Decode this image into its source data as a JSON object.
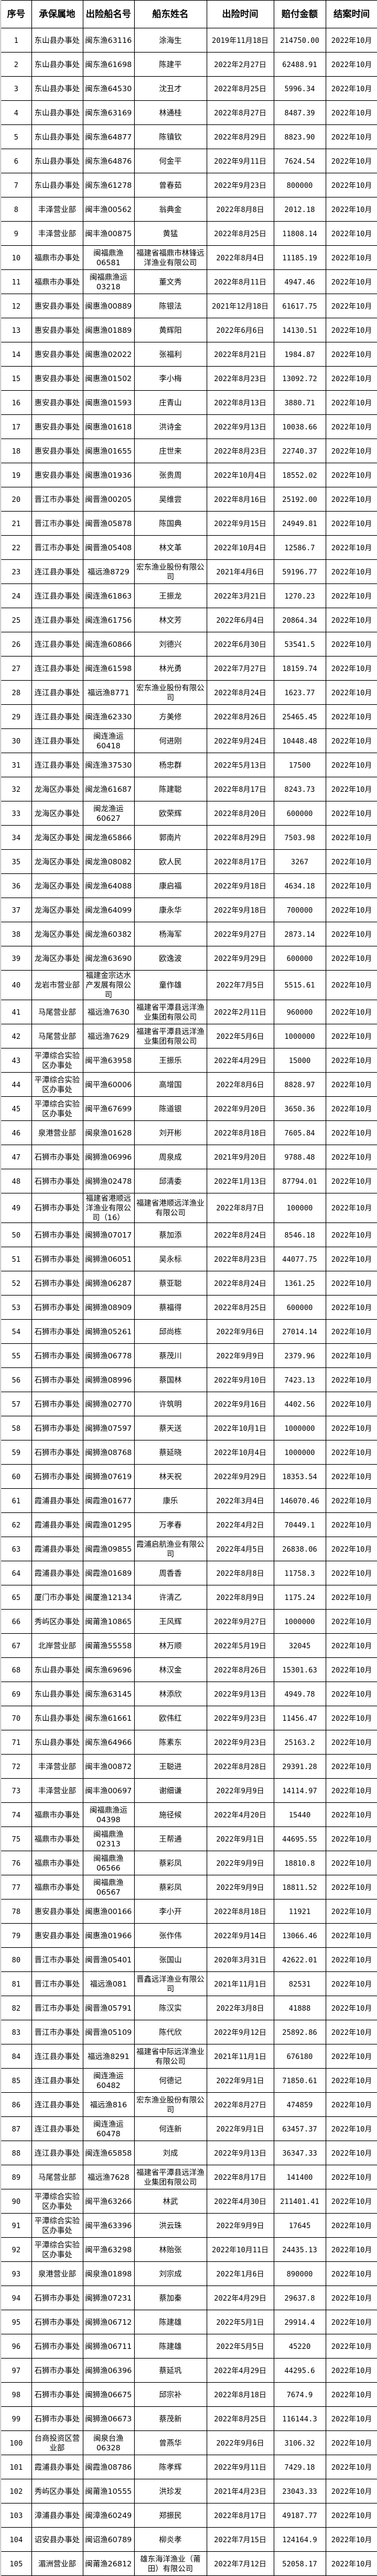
{
  "headers": [
    "序号",
    "承保属地",
    "出险船名号",
    "船东姓名",
    "出险时间",
    "赔付金额",
    "结案时间"
  ],
  "rows": [
    [
      "1",
      "东山县办事处",
      "闽东渔63116",
      "涂海生",
      "2019年11月18日",
      "214750.00",
      "2022年10月"
    ],
    [
      "2",
      "东山县办事处",
      "闽东渔61698",
      "陈建平",
      "2022年2月27日",
      "62488.91",
      "2022年10月"
    ],
    [
      "3",
      "东山县办事处",
      "闽东渔64530",
      "沈丑才",
      "2022年8月25日",
      "5996.34",
      "2022年10月"
    ],
    [
      "4",
      "东山县办事处",
      "闽东渔63169",
      "林通桂",
      "2022年8月27日",
      "8487.39",
      "2022年10月"
    ],
    [
      "5",
      "东山县办事处",
      "闽东渔64877",
      "陈镇钦",
      "2022年8月29日",
      "8823.90",
      "2022年10月"
    ],
    [
      "6",
      "东山县办事处",
      "闽东渔64876",
      "何金平",
      "2022年9月11日",
      "7624.54",
      "2022年10月"
    ],
    [
      "7",
      "东山县办事处",
      "闽东渔61278",
      "曾春茹",
      "2022年9月23日",
      "800000",
      "2022年10月"
    ],
    [
      "8",
      "丰泽营业部",
      "闽丰渔00562",
      "翁典金",
      "2022年8月8日",
      "2012.18",
      "2022年10月"
    ],
    [
      "9",
      "丰泽营业部",
      "闽丰渔00875",
      "黄猛",
      "2022年8月25日",
      "11808.14",
      "2022年10月"
    ],
    [
      "10",
      "福鼎市办事处",
      "闽福鼎渔06581",
      "福建省福鼎市林锋远洋渔业有限公司",
      "2022年8月4日",
      "11185.19",
      "2022年10月"
    ],
    [
      "11",
      "福鼎市办事处",
      "闽福鼎渔运03218",
      "董文秀",
      "2022年8月11日",
      "4947.46",
      "2022年10月"
    ],
    [
      "12",
      "惠安县办事处",
      "闽惠渔00889",
      "陈银法",
      "2021年12月18日",
      "61617.75",
      "2022年10月"
    ],
    [
      "13",
      "惠安县办事处",
      "闽惠渔01889",
      "黄辉阳",
      "2022年6月6日",
      "14130.51",
      "2022年10月"
    ],
    [
      "14",
      "惠安县办事处",
      "闽惠渔02022",
      "张福利",
      "2022年8月21日",
      "1984.87",
      "2022年10月"
    ],
    [
      "15",
      "惠安县办事处",
      "闽惠渔01502",
      "李小梅",
      "2022年8月23日",
      "13092.72",
      "2022年10月"
    ],
    [
      "16",
      "惠安县办事处",
      "闽惠渔01593",
      "庄青山",
      "2022年8月13日",
      "3880.71",
      "2022年10月"
    ],
    [
      "17",
      "惠安县办事处",
      "闽惠渔01618",
      "洪诗金",
      "2022年9月13日",
      "10038.66",
      "2022年10月"
    ],
    [
      "18",
      "惠安县办事处",
      "闽惠渔01655",
      "庄世来",
      "2022年8月23日",
      "22740.37",
      "2022年10月"
    ],
    [
      "19",
      "惠安县办事处",
      "闽惠渔01936",
      "张贵周",
      "2022年10月4日",
      "18552.02",
      "2022年10月"
    ],
    [
      "20",
      "晋江市办事处",
      "闽晋渔00205",
      "吴维尝",
      "2022年8月16日",
      "25192.00",
      "2022年10月"
    ],
    [
      "21",
      "晋江市办事处",
      "闽晋渔05878",
      "陈国典",
      "2022年9月15日",
      "24949.81",
      "2022年10月"
    ],
    [
      "22",
      "晋江市办事处",
      "闽晋渔05408",
      "林文革",
      "2022年10月4日",
      "12586.7",
      "2022年10月"
    ],
    [
      "23",
      "连江县办事处",
      "福远渔8729",
      "宏东渔业股份有限公司",
      "2021年4月6日",
      "59196.77",
      "2022年10月"
    ],
    [
      "24",
      "连江县办事处",
      "闽连渔61863",
      "王振龙",
      "2022年3月21日",
      "1270.23",
      "2022年10月"
    ],
    [
      "25",
      "连江县办事处",
      "闽连渔61756",
      "林文芳",
      "2022年6月4日",
      "20864.34",
      "2022年10月"
    ],
    [
      "26",
      "连江县办事处",
      "闽连渔60866",
      "刘德兴",
      "2022年6月30日",
      "53541.5",
      "2022年10月"
    ],
    [
      "27",
      "连江县办事处",
      "闽连渔61598",
      "林光勇",
      "2022年7月27日",
      "18159.74",
      "2022年10月"
    ],
    [
      "28",
      "连江县办事处",
      "福远渔8771",
      "宏东渔业股份有限公司",
      "2022年8月24日",
      "1623.77",
      "2022年10月"
    ],
    [
      "29",
      "连江县办事处",
      "闽连渔62330",
      "方美修",
      "2022年8月26日",
      "25465.45",
      "2022年10月"
    ],
    [
      "30",
      "连江县办事处",
      "闽连渔运60418",
      "何进刚",
      "2022年9月24日",
      "10448.48",
      "2022年10月"
    ],
    [
      "31",
      "连江县办事处",
      "闽连渔37530",
      "杨忠群",
      "2022年5月13日",
      "17500",
      "2022年10月"
    ],
    [
      "32",
      "龙海区办事处",
      "闽龙渔61687",
      "陈建聪",
      "2022年8月17日",
      "8243.73",
      "2022年10月"
    ],
    [
      "33",
      "龙海区办事处",
      "闽龙渔运60627",
      "欧荣辉",
      "2022年8月20日",
      "600000",
      "2022年10月"
    ],
    [
      "34",
      "龙海区办事处",
      "闽龙渔65866",
      "郭南片",
      "2022年8月29日",
      "7503.98",
      "2022年10月"
    ],
    [
      "35",
      "龙海区办事处",
      "闽龙渔08082",
      "欧人民",
      "2022年8月17日",
      "3267",
      "2022年10月"
    ],
    [
      "36",
      "龙海区办事处",
      "闽龙渔64088",
      "康启福",
      "2022年9月18日",
      "4634.18",
      "2022年10月"
    ],
    [
      "37",
      "龙海区办事处",
      "闽龙渔64099",
      "康永华",
      "2022年9月18日",
      "700000",
      "2022年10月"
    ],
    [
      "38",
      "龙海区办事处",
      "闽龙渔60382",
      "杨海军",
      "2022年9月27日",
      "2873.14",
      "2022年10月"
    ],
    [
      "39",
      "龙海区办事处",
      "闽龙渔63690",
      "欧逸波",
      "2022年9月29日",
      "600000",
      "2022年10月"
    ],
    [
      "40",
      "龙岩市营业部",
      "福建金宗达水产发展有限公司",
      "童作雄",
      "2022年7月5日",
      "5515.61",
      "2022年10月"
    ],
    [
      "41",
      "马尾营业部",
      "福远渔7630",
      "福建省平潭县远洋渔业集团有限公司",
      "2022年2月11日",
      "960000",
      "2022年10月"
    ],
    [
      "42",
      "马尾营业部",
      "福远渔7629",
      "福建省平潭县远洋渔业集团有限公司",
      "2022年5月6日",
      "1000000",
      "2022年10月"
    ],
    [
      "43",
      "平潭综合实验区办事处",
      "闽平渔63958",
      "王振乐",
      "2022年4月29日",
      "15000",
      "2022年10月"
    ],
    [
      "44",
      "平潭综合实验区办事处",
      "闽平渔60006",
      "高增国",
      "2022年8月6日",
      "8828.97",
      "2022年10月"
    ],
    [
      "45",
      "平潭综合实验区办事处",
      "闽平渔67699",
      "陈道银",
      "2022年9月20日",
      "3650.36",
      "2022年10月"
    ],
    [
      "46",
      "泉港营业部",
      "闽泉渔01628",
      "刘开彬",
      "2022年8月18日",
      "7605.84",
      "2022年10月"
    ],
    [
      "47",
      "石狮市办事处",
      "闽狮渔06996",
      "周泉成",
      "2021年9月20日",
      "9788.48",
      "2022年10月"
    ],
    [
      "48",
      "石狮市办事处",
      "闽狮渔02478",
      "邱清委",
      "2022年1月13日",
      "87794.01",
      "2022年10月"
    ],
    [
      "49",
      "石狮市办事处",
      "福建省港顺远洋渔业有限公司（16）",
      "福建省港顺远洋渔业有限公司",
      "2022年8月7日",
      "100000",
      "2022年10月"
    ],
    [
      "50",
      "石狮市办事处",
      "闽狮渔07017",
      "蔡加添",
      "2022年8月24日",
      "8546.18",
      "2022年10月"
    ],
    [
      "51",
      "石狮市办事处",
      "闽狮渔06051",
      "吴永标",
      "2022年8月23日",
      "44077.75",
      "2022年10月"
    ],
    [
      "52",
      "石狮市办事处",
      "闽狮渔06287",
      "蔡亚聪",
      "2022年8月24日",
      "1361.25",
      "2022年10月"
    ],
    [
      "53",
      "石狮市办事处",
      "闽狮渔08909",
      "蔡福得",
      "2022年8月25日",
      "600000",
      "2022年10月"
    ],
    [
      "54",
      "石狮市办事处",
      "闽狮渔05261",
      "邱尚栋",
      "2022年9月6日",
      "27014.14",
      "2022年10月"
    ],
    [
      "55",
      "石狮市办事处",
      "闽狮渔06778",
      "蔡茂川",
      "2022年9月9日",
      "2379.96",
      "2022年10月"
    ],
    [
      "56",
      "石狮市办事处",
      "闽狮渔08996",
      "蔡国林",
      "2022年9月10日",
      "7423.13",
      "2022年10月"
    ],
    [
      "57",
      "石狮市办事处",
      "闽狮渔02770",
      "许筑明",
      "2022年9月16日",
      "4402.56",
      "2022年10月"
    ],
    [
      "58",
      "石狮市办事处",
      "闽狮渔07597",
      "蔡天送",
      "2022年10月1日",
      "1000000",
      "2022年10月"
    ],
    [
      "59",
      "石狮市办事处",
      "闽狮渔08768",
      "蔡延晓",
      "2022年10月4日",
      "1000000",
      "2022年10月"
    ],
    [
      "60",
      "石狮市办事处",
      "闽狮渔07619",
      "林天祝",
      "2022年9月29日",
      "18353.54",
      "2022年10月"
    ],
    [
      "61",
      "霞浦县办事处",
      "闽霞渔01677",
      "康乐",
      "2022年3月4日",
      "146070.46",
      "2022年10月"
    ],
    [
      "62",
      "霞浦县办事处",
      "闽霞渔01295",
      "万孝春",
      "2022年4月2日",
      "70449.1",
      "2022年10月"
    ],
    [
      "63",
      "霞浦县办事处",
      "闽霞渔09855",
      "霞浦启航渔业有限公司",
      "2022年4月5日",
      "26838.06",
      "2022年10月"
    ],
    [
      "64",
      "霞浦县办事处",
      "闽霞渔01689",
      "周香香",
      "2022年8月8日",
      "11758.3",
      "2022年10月"
    ],
    [
      "65",
      "厦门市办事处",
      "闽厦渔12134",
      "许清乙",
      "2022年8月9日",
      "1175.24",
      "2022年10月"
    ],
    [
      "66",
      "秀屿区办事处",
      "闽莆渔10865",
      "王风辉",
      "2022年9月27日",
      "1000000",
      "2022年10月"
    ],
    [
      "67",
      "北岸营业部",
      "闽莆渔55558",
      "林万顺",
      "2022年5月19日",
      "32045",
      "2022年10月"
    ],
    [
      "68",
      "东山县办事处",
      "闽东渔69696",
      "林汉金",
      "2022年8月26日",
      "15301.63",
      "2022年10月"
    ],
    [
      "69",
      "东山县办事处",
      "闽东渔63145",
      "林添欣",
      "2022年9月13日",
      "4949.78",
      "2022年10月"
    ],
    [
      "70",
      "东山县办事处",
      "闽东渔61661",
      "欧伟红",
      "2022年9月23日",
      "11456.47",
      "2022年10月"
    ],
    [
      "71",
      "东山县办事处",
      "闽东渔64966",
      "陈素东",
      "2022年9月23日",
      "25163.2",
      "2022年10月"
    ],
    [
      "72",
      "丰泽营业部",
      "闽丰渔00872",
      "王聪进",
      "2022年8月28日",
      "29391.28",
      "2022年10月"
    ],
    [
      "73",
      "丰泽营业部",
      "闽丰渔00697",
      "谢细谦",
      "2022年9月9日",
      "14114.97",
      "2022年10月"
    ],
    [
      "74",
      "福鼎市办事处",
      "闽福鼎渔运04398",
      "施径候",
      "2022年4月20日",
      "15440",
      "2022年10月"
    ],
    [
      "75",
      "福鼎市办事处",
      "闽福鼎渔02313",
      "王帮通",
      "2022年9月1日",
      "44695.55",
      "2022年10月"
    ],
    [
      "76",
      "福鼎市办事处",
      "闽福鼎渔06566",
      "蔡彩凤",
      "2022年9月9日",
      "18810.8",
      "2022年10月"
    ],
    [
      "77",
      "福鼎市办事处",
      "闽福鼎渔06567",
      "蔡彩凤",
      "2022年9月9日",
      "18811.52",
      "2022年10月"
    ],
    [
      "78",
      "惠安县办事处",
      "闽惠渔00166",
      "李小开",
      "2022年8月18日",
      "11921",
      "2022年10月"
    ],
    [
      "79",
      "惠安县办事处",
      "闽惠渔01966",
      "张作伟",
      "2022年9月14日",
      "13066.46",
      "2022年10月"
    ],
    [
      "80",
      "晋江市办事处",
      "闽晋渔05401",
      "张国山",
      "2020年3月31日",
      "42622.01",
      "2022年10月"
    ],
    [
      "81",
      "晋江市办事处",
      "福远渔081",
      "晋鑫远洋渔业有限公司",
      "2021年11月1日",
      "82531",
      "2022年10月"
    ],
    [
      "82",
      "晋江市办事处",
      "闽晋渔05791",
      "陈汉实",
      "2022年3月8日",
      "41888",
      "2022年10月"
    ],
    [
      "83",
      "晋江市办事处",
      "闽晋渔05109",
      "陈代欣",
      "2022年9月12日",
      "25892.86",
      "2022年10月"
    ],
    [
      "84",
      "连江县办事处",
      "福远渔8291",
      "福建省中际远洋渔业有限公司",
      "2021年11月1日",
      "676180",
      "2022年10月"
    ],
    [
      "85",
      "连江县办事处",
      "闽连渔运60482",
      "何德记",
      "2022年9月1日",
      "71850.61",
      "2022年10月"
    ],
    [
      "86",
      "连江县办事处",
      "福远渔816",
      "宏东渔业股份有限公司",
      "2022年8月27日",
      "474859",
      "2022年10月"
    ],
    [
      "87",
      "连江县办事处",
      "闽连渔运60478",
      "何连新",
      "2022年9月1日",
      "63457.37",
      "2022年10月"
    ],
    [
      "88",
      "连江县办事处",
      "闽连渔65858",
      "刘成",
      "2022年9月13日",
      "36347.33",
      "2022年10月"
    ],
    [
      "89",
      "马尾营业部",
      "福远渔7628",
      "福建省平潭县远洋渔业集团有限公司",
      "2022年8月17日",
      "141400",
      "2022年10月"
    ],
    [
      "90",
      "平潭综合实验区办事处",
      "闽平渔63266",
      "林武",
      "2022年4月30日",
      "211401.41",
      "2022年10月"
    ],
    [
      "91",
      "平潭综合实验区办事处",
      "闽平渔63396",
      "洪云珠",
      "2022年9月9日",
      "17645",
      "2022年10月"
    ],
    [
      "92",
      "平潭综合实验区办事处",
      "闽平渔63298",
      "林贻张",
      "2022年10月11日",
      "24435.13",
      "2022年10月"
    ],
    [
      "93",
      "泉港营业部",
      "闽泉渔01898",
      "刘宗成",
      "2022年1月6日",
      "890000",
      "2022年10月"
    ],
    [
      "94",
      "石狮市办事处",
      "闽狮渔07231",
      "蔡加秦",
      "2022年4月29日",
      "29637.8",
      "2022年10月"
    ],
    [
      "95",
      "石狮市办事处",
      "闽狮渔06712",
      "陈建雄",
      "2022年5月1日",
      "29914.4",
      "2022年10月"
    ],
    [
      "96",
      "石狮市办事处",
      "闽狮渔06711",
      "陈建雄",
      "2022年5月5日",
      "45220",
      "2022年10月"
    ],
    [
      "97",
      "石狮市办事处",
      "闽狮渔06396",
      "蔡延巩",
      "2022年4月29日",
      "44295.6",
      "2022年10月"
    ],
    [
      "98",
      "石狮市办事处",
      "闽狮渔06675",
      "邱宗补",
      "2022年8月18日",
      "7674.9",
      "2022年10月"
    ],
    [
      "99",
      "石狮市办事处",
      "闽狮渔06673",
      "蔡茂新",
      "2022年8月25日",
      "116144.3",
      "2022年10月"
    ],
    [
      "100",
      "台商投资区营业部",
      "闽泉台渔06328",
      "曾燕华",
      "2022年9月6日",
      "3106.32",
      "2022年10月"
    ],
    [
      "101",
      "霞浦县办事处",
      "闽霞渔08786",
      "陈孝辉",
      "2022年9月11日",
      "7429.18",
      "2022年10月"
    ],
    [
      "102",
      "秀屿区办事处",
      "闽莆渔10555",
      "洪珍发",
      "2021年4月23日",
      "23043.33",
      "2022年10月"
    ],
    [
      "103",
      "漳浦县办事处",
      "闽漳渔60249",
      "郑振民",
      "2022年8月17日",
      "49187.77",
      "2022年10月"
    ],
    [
      "104",
      "诏安县办事处",
      "闽诏渔60789",
      "柳炎孝",
      "2022年7月15日",
      "124164.9",
      "2022年10月"
    ],
    [
      "105",
      "湄洲营业部",
      "闽莆渔26812",
      "雄东海洋渔业（莆田）有限公司",
      "2022年7月12日",
      "52058.17",
      "2022年10月"
    ]
  ]
}
